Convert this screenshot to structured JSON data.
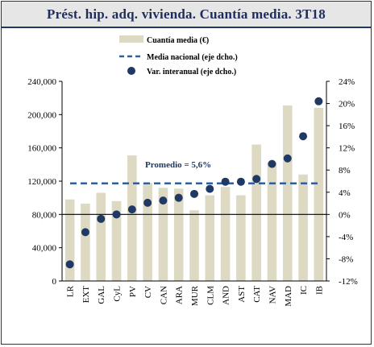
{
  "header": {
    "title": "Prést. hip. adq. vivienda. Cuantía media. 3T18"
  },
  "chart_data": {
    "type": "bar",
    "title": "Prést. hip. adq. vivienda. Cuantía media. 3T18",
    "categories": [
      "LR",
      "EXT",
      "GAL",
      "CyL",
      "PV",
      "CV",
      "CAN",
      "ARA",
      "MUR",
      "CLM",
      "AND",
      "AST",
      "CAT",
      "NAV",
      "MAD",
      "IC",
      "IB"
    ],
    "series": [
      {
        "name": "Cuantía media (€)",
        "type": "bar",
        "axis": "left",
        "color": "#ddd9c3",
        "values": [
          98000,
          93000,
          106000,
          96000,
          151000,
          118000,
          112000,
          111000,
          85000,
          103000,
          113000,
          103000,
          164000,
          143000,
          211000,
          128000,
          208000
        ]
      },
      {
        "name": "Media nacional (eje dcho.)",
        "type": "line",
        "axis": "right",
        "color": "#2e5f9e",
        "style": "dashed",
        "values": [
          5.6,
          5.6,
          5.6,
          5.6,
          5.6,
          5.6,
          5.6,
          5.6,
          5.6,
          5.6,
          5.6,
          5.6,
          5.6,
          5.6,
          5.6,
          5.6,
          5.6
        ]
      },
      {
        "name": "Var. interanual (eje dcho.)",
        "type": "scatter",
        "axis": "right",
        "color": "#1f3864",
        "values": [
          -9.0,
          -3.2,
          -0.8,
          0.0,
          0.9,
          2.1,
          2.5,
          3.0,
          3.7,
          4.6,
          5.9,
          5.9,
          6.4,
          9.1,
          10.1,
          14.1,
          20.4
        ]
      }
    ],
    "left_axis": {
      "min": 0,
      "max": 240000,
      "step": 40000,
      "tick_labels": [
        "0",
        "40,000",
        "80,000",
        "120,000",
        "160,000",
        "200,000",
        "240,000"
      ]
    },
    "right_axis": {
      "min": -12,
      "max": 24,
      "step": 4,
      "tick_labels": [
        "-12%",
        "-8%",
        "-4%",
        "0%",
        "4%",
        "8%",
        "12%",
        "16%",
        "20%",
        "24%"
      ]
    },
    "annotation": "Promedio = 5,6%",
    "legend_position": "top-center",
    "grid": false,
    "zero_line": true
  }
}
